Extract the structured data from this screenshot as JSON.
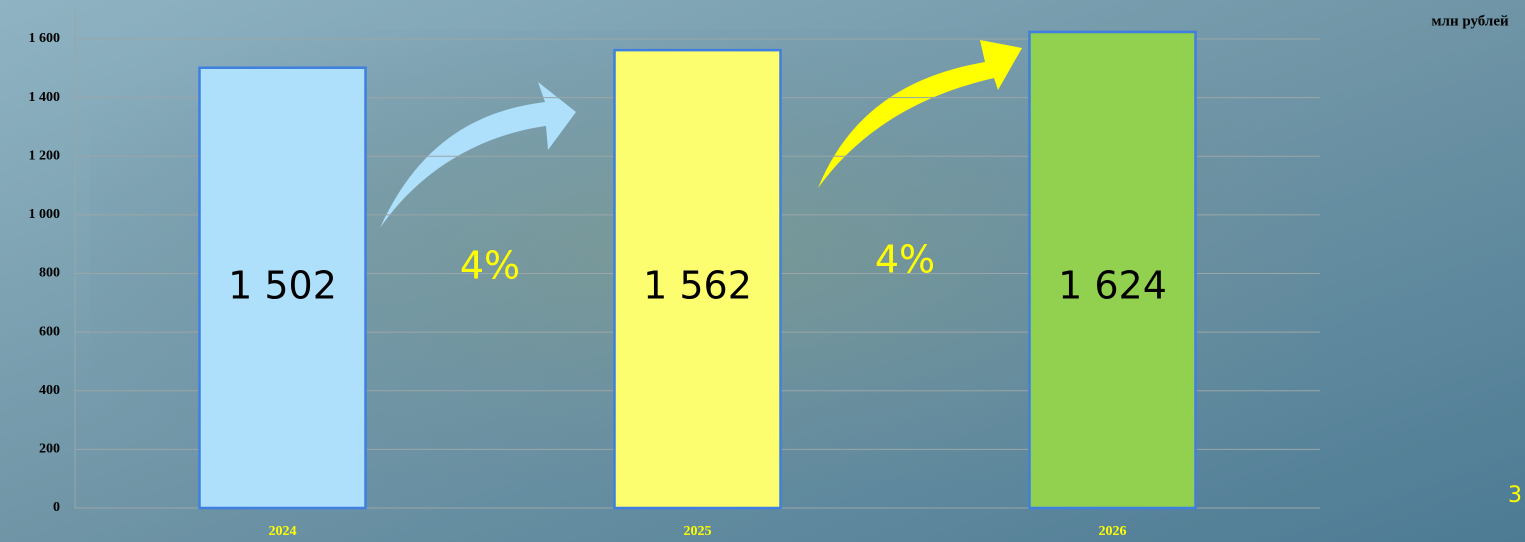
{
  "chart_data": {
    "type": "bar",
    "unit_label": "млн рублей",
    "categories": [
      "2024",
      "2025",
      "2026"
    ],
    "values": [
      1502,
      1562,
      1624
    ],
    "value_labels": [
      "1 502",
      "1 562",
      "1 624"
    ],
    "colors": [
      "#aee0fb",
      "#fdfd70",
      "#92d050"
    ],
    "growth_labels": [
      "4%",
      "4%"
    ],
    "ylim": [
      0,
      1700
    ],
    "yticks": [
      0,
      200,
      400,
      600,
      800,
      {
        "value": 1000,
        "label": "1 000"
      },
      {
        "value": 1200,
        "label": "1 200"
      },
      {
        "value": 1400,
        "label": "1 400"
      },
      {
        "value": 1600,
        "label": "1 600"
      }
    ],
    "grid": true
  },
  "page_number": "3"
}
